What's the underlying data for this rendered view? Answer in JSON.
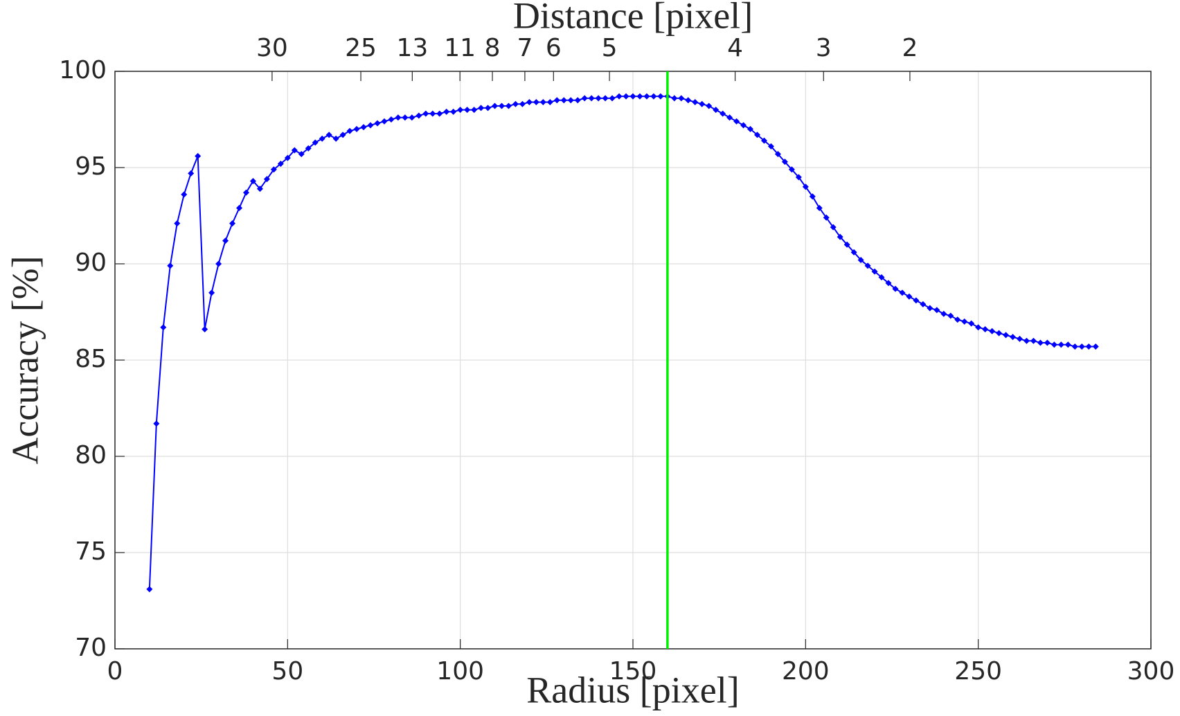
{
  "chart_data": {
    "type": "line",
    "xlabel": "Radius [pixel]",
    "ylabel": "Accuracy [%]",
    "x2label": "Distance [pixel]",
    "xlim": [
      0,
      300
    ],
    "xticks": [
      0,
      50,
      100,
      150,
      200,
      250,
      300
    ],
    "ylim": [
      70,
      100
    ],
    "yticks": [
      70,
      75,
      80,
      85,
      90,
      95,
      100
    ],
    "x2ticks": [
      {
        "value": 45.5,
        "label": "30"
      },
      {
        "value": 71.2,
        "label": "25"
      },
      {
        "value": 86.1,
        "label": "13"
      },
      {
        "value": 99.9,
        "label": "11"
      },
      {
        "value": 109.3,
        "label": "8"
      },
      {
        "value": 118.7,
        "label": "7"
      },
      {
        "value": 127,
        "label": "6"
      },
      {
        "value": 143.2,
        "label": "5"
      },
      {
        "value": 179.6,
        "label": "4"
      },
      {
        "value": 205.2,
        "label": "3"
      },
      {
        "value": 230.2,
        "label": "2"
      }
    ],
    "grid": true,
    "vline": {
      "x": 160,
      "color": "#00ee00"
    },
    "x": [
      10,
      12,
      14,
      16,
      18,
      20,
      22,
      24,
      26,
      28,
      30,
      32,
      34,
      36,
      38,
      40,
      42,
      44,
      46,
      48,
      50,
      52,
      54,
      56,
      58,
      60,
      62,
      64,
      66,
      68,
      70,
      72,
      74,
      76,
      78,
      80,
      82,
      84,
      86,
      88,
      90,
      92,
      94,
      96,
      98,
      100,
      102,
      104,
      106,
      108,
      110,
      112,
      114,
      116,
      118,
      120,
      122,
      124,
      126,
      128,
      130,
      132,
      134,
      136,
      138,
      140,
      142,
      144,
      146,
      148,
      150,
      152,
      154,
      156,
      158,
      160,
      162,
      164,
      166,
      168,
      170,
      172,
      174,
      176,
      178,
      180,
      182,
      184,
      186,
      188,
      190,
      192,
      194,
      196,
      198,
      200,
      202,
      204,
      206,
      208,
      210,
      212,
      214,
      216,
      218,
      220,
      222,
      224,
      226,
      228,
      230,
      232,
      234,
      236,
      238,
      240,
      242,
      244,
      246,
      248,
      250,
      252,
      254,
      256,
      258,
      260,
      262,
      264,
      266,
      268,
      270,
      272,
      274,
      276,
      278,
      280,
      282,
      284
    ],
    "series": [
      {
        "color": "#0000ff",
        "values": [
          73.1,
          81.7,
          86.7,
          89.9,
          92.1,
          93.6,
          94.7,
          95.6,
          86.6,
          88.5,
          90.0,
          91.2,
          92.1,
          92.9,
          93.7,
          94.3,
          93.9,
          94.4,
          94.9,
          95.2,
          95.5,
          95.9,
          95.7,
          96.0,
          96.3,
          96.5,
          96.7,
          96.5,
          96.7,
          96.9,
          97.0,
          97.1,
          97.2,
          97.3,
          97.4,
          97.5,
          97.6,
          97.6,
          97.6,
          97.7,
          97.8,
          97.8,
          97.8,
          97.9,
          97.9,
          98.0,
          98.0,
          98.0,
          98.1,
          98.1,
          98.2,
          98.2,
          98.2,
          98.3,
          98.3,
          98.4,
          98.4,
          98.4,
          98.4,
          98.5,
          98.5,
          98.5,
          98.5,
          98.6,
          98.6,
          98.6,
          98.6,
          98.6,
          98.7,
          98.7,
          98.7,
          98.7,
          98.7,
          98.7,
          98.7,
          98.7,
          98.6,
          98.6,
          98.5,
          98.4,
          98.3,
          98.2,
          98.0,
          97.8,
          97.6,
          97.4,
          97.2,
          97.0,
          96.7,
          96.4,
          96.1,
          95.7,
          95.3,
          94.9,
          94.5,
          94.0,
          93.5,
          92.9,
          92.4,
          91.9,
          91.4,
          91.0,
          90.6,
          90.2,
          89.9,
          89.6,
          89.3,
          89.0,
          88.7,
          88.5,
          88.3,
          88.1,
          87.9,
          87.7,
          87.6,
          87.4,
          87.3,
          87.1,
          87.0,
          86.9,
          86.7,
          86.6,
          86.5,
          86.4,
          86.3,
          86.2,
          86.1,
          86.0,
          86.0,
          85.9,
          85.9,
          85.8,
          85.8,
          85.8,
          85.7,
          85.7,
          85.7,
          85.7
        ]
      }
    ]
  }
}
